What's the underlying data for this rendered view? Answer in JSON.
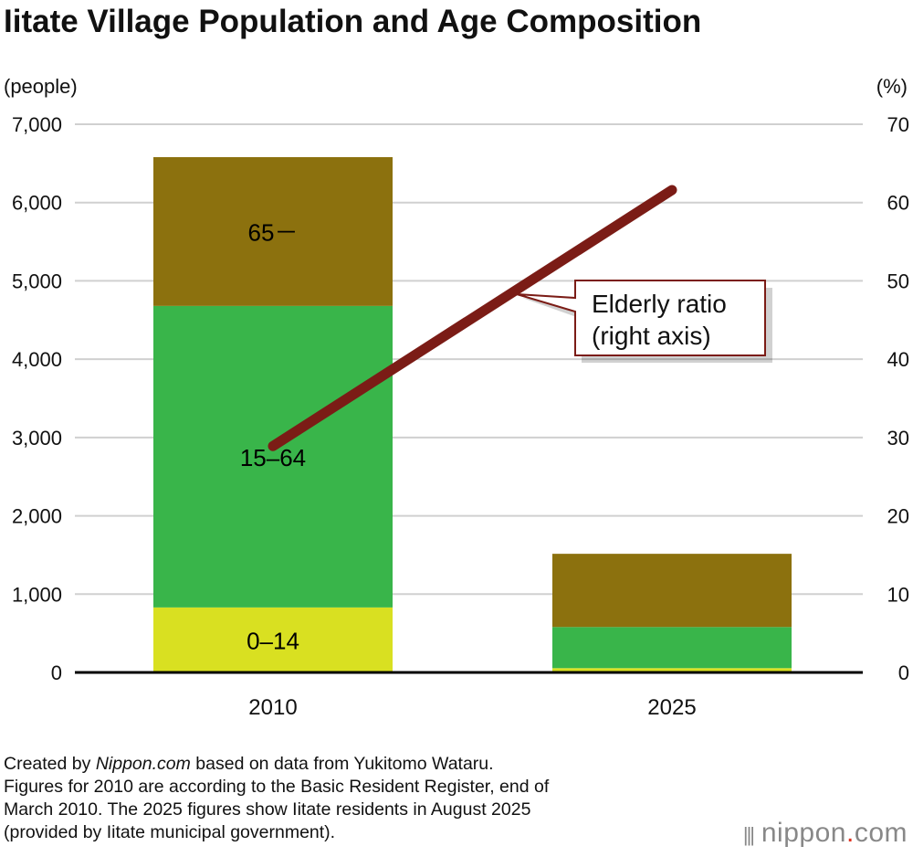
{
  "title": "Iitate Village Population and Age Composition",
  "left_unit": "(people)",
  "right_unit": "(%)",
  "notes": {
    "line1_prefix": "Created by ",
    "line1_source": "Nippon.com",
    "line1_suffix": " based on data from Yukitomo Wataru.",
    "line2": "Figures for 2010 are according to the Basic Resident Register, end of",
    "line3": "March 2010. The 2025 figures show Iitate residents in August 2025",
    "line4": "(provided by Iitate municipal government)."
  },
  "logo": {
    "name": "nippon",
    "dot": ".",
    "suffix": "com"
  },
  "chart_data": {
    "type": "bar",
    "stacked": true,
    "title": "Iitate Village Population and Age Composition",
    "categories": [
      "2010",
      "2025"
    ],
    "ylabel": "(people)",
    "ylim": [
      0,
      7000
    ],
    "yticks": [
      "0",
      "1,000",
      "2,000",
      "3,000",
      "4,000",
      "5,000",
      "6,000",
      "7,000"
    ],
    "y2label": "(%)",
    "y2lim": [
      0,
      70
    ],
    "y2ticks": [
      "0",
      "10",
      "20",
      "30",
      "40",
      "50",
      "60",
      "70"
    ],
    "grid": true,
    "series": [
      {
        "name": "0–14",
        "values": [
          830,
          55
        ],
        "color": "#d9e021"
      },
      {
        "name": "15–64",
        "values": [
          3850,
          525
        ],
        "color": "#39b54a"
      },
      {
        "name": "65－",
        "values": [
          1900,
          935
        ],
        "color": "#8c710e"
      }
    ],
    "line_series": {
      "name": "Elderly ratio (right axis)",
      "label_line1": "Elderly ratio",
      "label_line2": "(right axis)",
      "axis": "right",
      "values": [
        28.9,
        61.6
      ],
      "color": "#7b1c16"
    }
  }
}
